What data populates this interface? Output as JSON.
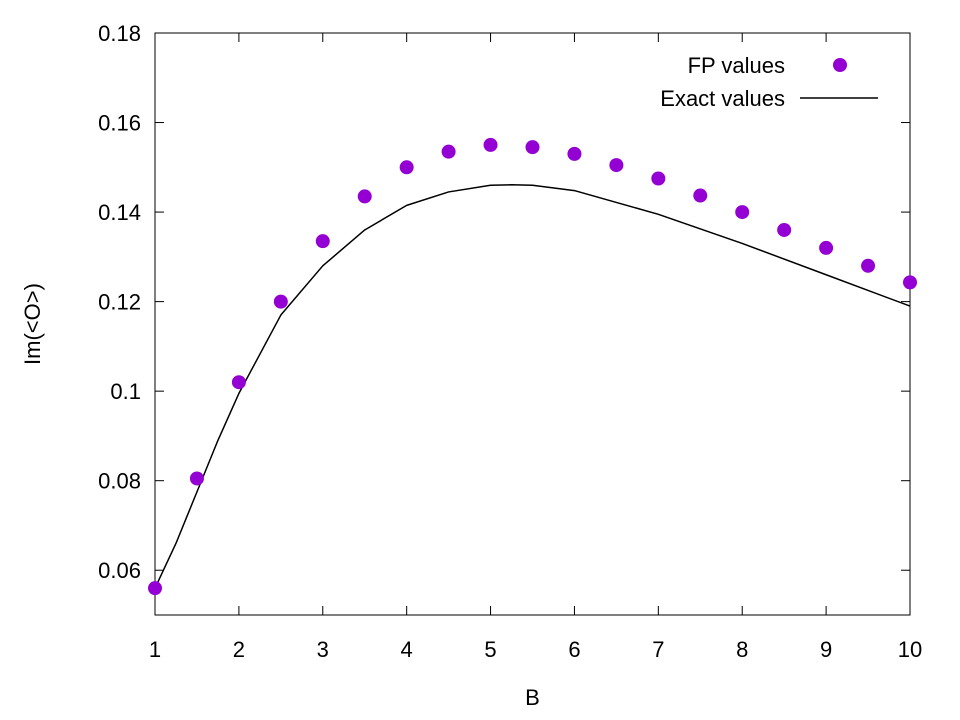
{
  "chart_data": {
    "type": "scatter",
    "title": "",
    "xlabel": "B",
    "ylabel": "Im(<O>)",
    "xlim": [
      1,
      10
    ],
    "ylim": [
      0.05,
      0.18
    ],
    "x_ticks": [
      1,
      2,
      3,
      4,
      5,
      6,
      7,
      8,
      9,
      10
    ],
    "x_tick_labels": [
      "1",
      "2",
      "3",
      "4",
      "5",
      "6",
      "7",
      "8",
      "9",
      "10"
    ],
    "y_ticks": [
      0.06,
      0.08,
      0.1,
      0.12,
      0.14,
      0.16,
      0.18
    ],
    "y_tick_labels": [
      "0.06",
      "0.08",
      "0.1",
      "0.12",
      "0.14",
      "0.16",
      "0.18"
    ],
    "grid": false,
    "legend_position": "top-right",
    "series": [
      {
        "name": "FP values",
        "kind": "points",
        "color": "#9400d3",
        "x": [
          1,
          1.5,
          2,
          2.5,
          3,
          3.5,
          4,
          4.5,
          5,
          5.5,
          6,
          6.5,
          7,
          7.5,
          8,
          8.5,
          9,
          9.5,
          10
        ],
        "y": [
          0.056,
          0.0805,
          0.102,
          0.12,
          0.1335,
          0.1435,
          0.15,
          0.1535,
          0.155,
          0.1545,
          0.153,
          0.1505,
          0.1475,
          0.1437,
          0.14,
          0.136,
          0.132,
          0.128,
          0.1243
        ]
      },
      {
        "name": "Exact values",
        "kind": "line",
        "color": "#000000",
        "x": [
          1,
          1.25,
          1.5,
          1.75,
          2,
          2.5,
          3,
          3.5,
          4,
          4.5,
          5,
          5.25,
          5.5,
          6,
          7,
          8,
          9,
          10
        ],
        "y": [
          0.056,
          0.066,
          0.0775,
          0.089,
          0.0995,
          0.117,
          0.128,
          0.136,
          0.1415,
          0.1445,
          0.146,
          0.1461,
          0.146,
          0.1448,
          0.1395,
          0.133,
          0.126,
          0.119
        ]
      }
    ]
  }
}
